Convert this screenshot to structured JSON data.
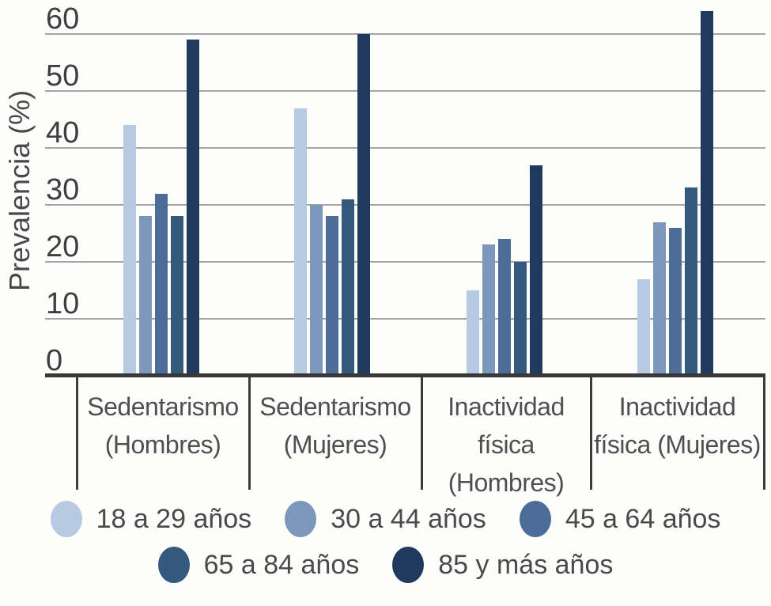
{
  "chart_data": {
    "type": "bar",
    "title": "",
    "xlabel": "",
    "ylabel": "Prevalencia (%)",
    "yticks": [
      0,
      10,
      20,
      30,
      40,
      50,
      60
    ],
    "ylim": [
      0,
      66
    ],
    "grid": true,
    "legend_position": "bottom",
    "categories": [
      "Sedentarismo\n(Hombres)",
      "Sedentarismo\n(Mujeres)",
      "Inactividad\nfísica\n(Hombres)",
      "Inactividad\nfísica (Mujeres)"
    ],
    "series": [
      {
        "name": "18 a 29 años",
        "color": "#b6cae2",
        "values": [
          44,
          47,
          15,
          17
        ]
      },
      {
        "name": "30 a 44 años",
        "color": "#7b97ba",
        "values": [
          28,
          30,
          23,
          27
        ]
      },
      {
        "name": "45 a 64 años",
        "color": "#4b6d97",
        "values": [
          32,
          28,
          24,
          26
        ]
      },
      {
        "name": "65 a 84 años",
        "color": "#35587e",
        "values": [
          28,
          31,
          20,
          33
        ]
      },
      {
        "name": "85 y más años",
        "color": "#1f3a5c",
        "values": [
          59,
          60,
          37,
          64
        ]
      }
    ]
  }
}
